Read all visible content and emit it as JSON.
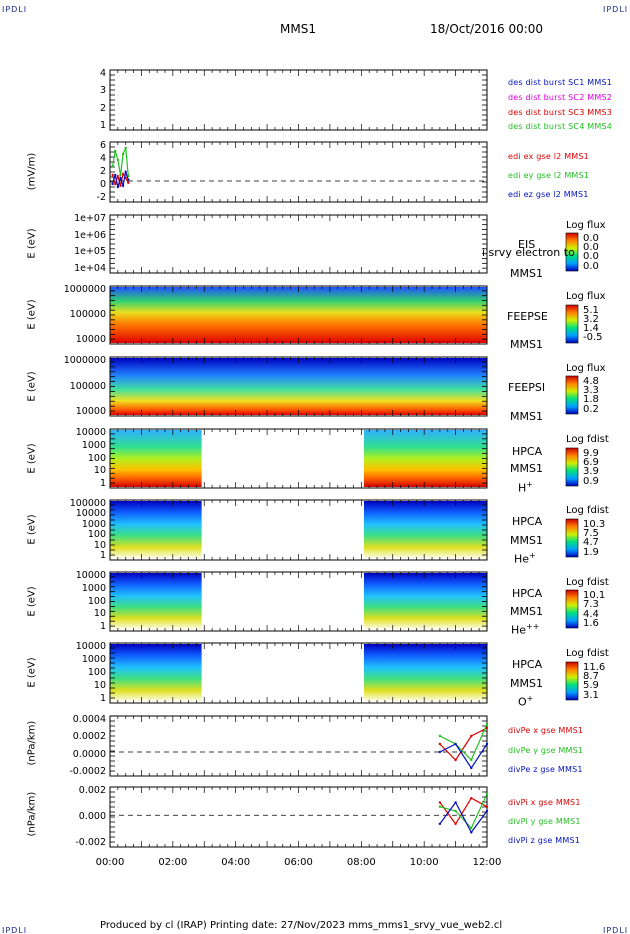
{
  "header": {
    "corner_label": "IPDLI",
    "mission": "MMS1",
    "date": "18/Oct/2016 00:00"
  },
  "footer": {
    "text": "Produced by cl (IRAP)   Printing date: 27/Nov/2023   mms_mms1_srvy_vue_web2.cl"
  },
  "colors": {
    "red": "#e00000",
    "green": "#20c020",
    "blue": "#0010c0",
    "magenta": "#e000e0",
    "navy": "#0010a0"
  },
  "chart_data": [
    {
      "type": "line",
      "id": "des-dist-burst",
      "ylabel": "",
      "ylim": [
        0.5,
        4.8
      ],
      "yticks": [
        "4",
        "3",
        "2",
        "1"
      ],
      "series": [
        {
          "name": "des dist burst SC1 MMS1",
          "color": "#0010c0",
          "values": []
        },
        {
          "name": "des dist burst SC2 MMS2",
          "color": "#e000e0",
          "values": []
        },
        {
          "name": "des dist burst SC3 MMS3",
          "color": "#e00000",
          "values": []
        },
        {
          "name": "des dist burst SC4 MMS4",
          "color": "#20c020",
          "values": []
        }
      ]
    },
    {
      "type": "line",
      "id": "edi-e-gse",
      "ylabel": "(mV/m)",
      "ylim": [
        -3.5,
        6.5
      ],
      "yticks": [
        "6",
        "4",
        "2",
        "0",
        "-2"
      ],
      "reference_line": 0,
      "x": [
        "00:05",
        "00:10",
        "00:15",
        "00:20",
        "00:25",
        "00:30",
        "00:35"
      ],
      "series": [
        {
          "name": "edi ex gse l2 MMS1",
          "color": "#e00000",
          "values": [
            1.0,
            -0.5,
            0.8,
            -0.8,
            1.2,
            0.5,
            -0.3
          ]
        },
        {
          "name": "edi ey gse l2 MMS1",
          "color": "#20c020",
          "values": [
            2.5,
            5.0,
            3.5,
            1.0,
            4.5,
            5.5,
            0.8
          ]
        },
        {
          "name": "edi ez gse l2 MMS1",
          "color": "#0010c0",
          "values": [
            -0.5,
            1.0,
            -1.0,
            0.5,
            -0.8,
            1.5,
            0.2
          ]
        }
      ]
    },
    {
      "type": "heatmap",
      "id": "eis",
      "ylabel": "E (eV)",
      "yticks": [
        "1e+07",
        "1e+06",
        "1e+05",
        "1e+04"
      ],
      "side_labels": [
        "EIS",
        "MMS1"
      ],
      "extra_label": "i srvy electron to",
      "colorbar_title": "Log flux",
      "colorbar_ticks": [
        "0.0",
        "0.0",
        "0.0",
        "0.0"
      ],
      "coverage": []
    },
    {
      "type": "heatmap",
      "id": "feeps-e",
      "ylabel": "E (eV)",
      "yticks": [
        "1000000",
        "100000",
        "10000"
      ],
      "side_labels": [
        "FEEPSE",
        "MMS1"
      ],
      "colorbar_title": "Log flux",
      "colorbar_ticks": [
        "5.1",
        "3.2",
        "1.4",
        "-0.5"
      ],
      "coverage": [
        [
          "00:00",
          "12:00"
        ]
      ]
    },
    {
      "type": "heatmap",
      "id": "feeps-i",
      "ylabel": "E (eV)",
      "yticks": [
        "1000000",
        "100000",
        "10000"
      ],
      "side_labels": [
        "FEEPSI",
        "MMS1"
      ],
      "colorbar_title": "Log flux",
      "colorbar_ticks": [
        "4.8",
        "3.3",
        "1.8",
        "0.2"
      ],
      "coverage": [
        [
          "00:00",
          "12:00"
        ]
      ]
    },
    {
      "type": "heatmap",
      "id": "hpca-h",
      "ylabel": "E (eV)",
      "yticks": [
        "10000",
        "1000",
        "100",
        "10",
        "1"
      ],
      "side_labels": [
        "HPCA",
        "MMS1"
      ],
      "species": "H",
      "species_sup": "+",
      "colorbar_title": "Log fdist",
      "colorbar_ticks": [
        "9.9",
        "6.9",
        "3.9",
        "0.9"
      ],
      "coverage": [
        [
          "00:00",
          "02:55"
        ],
        [
          "08:05",
          "12:00"
        ]
      ]
    },
    {
      "type": "heatmap",
      "id": "hpca-he",
      "ylabel": "E (eV)",
      "yticks": [
        "100000",
        "10000",
        "1000",
        "100",
        "10",
        "1"
      ],
      "side_labels": [
        "HPCA",
        "MMS1"
      ],
      "species": "He",
      "species_sup": "+",
      "colorbar_title": "Log fdist",
      "colorbar_ticks": [
        "10.3",
        "7.5",
        "4.7",
        "1.9"
      ],
      "coverage": [
        [
          "00:00",
          "02:55"
        ],
        [
          "08:05",
          "12:00"
        ]
      ]
    },
    {
      "type": "heatmap",
      "id": "hpca-hepp",
      "ylabel": "E (eV)",
      "yticks": [
        "10000",
        "1000",
        "100",
        "10",
        "1"
      ],
      "side_labels": [
        "HPCA",
        "MMS1"
      ],
      "species": "He",
      "species_sup": "++",
      "colorbar_title": "Log fdist",
      "colorbar_ticks": [
        "10.1",
        "7.3",
        "4.4",
        "1.6"
      ],
      "coverage": [
        [
          "00:00",
          "02:55"
        ],
        [
          "08:05",
          "12:00"
        ]
      ]
    },
    {
      "type": "heatmap",
      "id": "hpca-o",
      "ylabel": "E (eV)",
      "yticks": [
        "10000",
        "1000",
        "100",
        "10",
        "1"
      ],
      "side_labels": [
        "HPCA",
        "MMS1"
      ],
      "species": "O",
      "species_sup": "+",
      "colorbar_title": "Log fdist",
      "colorbar_ticks": [
        "11.6",
        "8.7",
        "5.9",
        "3.1"
      ],
      "coverage": [
        [
          "00:00",
          "02:55"
        ],
        [
          "08:05",
          "12:00"
        ]
      ]
    },
    {
      "type": "line",
      "id": "divpe",
      "ylabel": "(nPa/km)",
      "ylim": [
        -0.0003,
        0.00045
      ],
      "yticks": [
        "0.0004",
        "0.0002",
        "0.0000",
        "-0.0002"
      ],
      "reference_line": 0,
      "x": [
        "10:30",
        "11:00",
        "11:30",
        "12:00"
      ],
      "series": [
        {
          "name": "divPe x gse MMS1",
          "color": "#e00000",
          "values": [
            0.0001,
            -0.0001,
            0.0002,
            0.0003
          ]
        },
        {
          "name": "divPe y gse MMS1",
          "color": "#20c020",
          "values": [
            0.0002,
            0.0001,
            -0.0001,
            0.00035
          ]
        },
        {
          "name": "divPe z gse MMS1",
          "color": "#0010c0",
          "values": [
            0.0,
            0.0001,
            -0.0002,
            0.0001
          ]
        }
      ]
    },
    {
      "type": "line",
      "id": "divpi",
      "ylabel": "(nPa/km)",
      "ylim": [
        -0.0037,
        0.0033
      ],
      "yticks": [
        "0.002",
        "0.000",
        "-0.002"
      ],
      "reference_line": 0,
      "x": [
        "10:30",
        "11:00",
        "11:30",
        "12:00"
      ],
      "series": [
        {
          "name": "divPi x gse MMS1",
          "color": "#e00000",
          "values": [
            0.0015,
            -0.001,
            0.002,
            0.001
          ]
        },
        {
          "name": "divPi y gse MMS1",
          "color": "#20c020",
          "values": [
            0.001,
            0.0005,
            -0.0015,
            0.0025
          ]
        },
        {
          "name": "divPi z gse MMS1",
          "color": "#0010c0",
          "values": [
            -0.001,
            0.0015,
            -0.002,
            0.0005
          ]
        }
      ]
    }
  ],
  "x_axis": {
    "ticks": [
      "00:00",
      "02:00",
      "04:00",
      "06:00",
      "08:00",
      "10:00",
      "12:00"
    ],
    "range": [
      "00:00",
      "12:00"
    ]
  }
}
